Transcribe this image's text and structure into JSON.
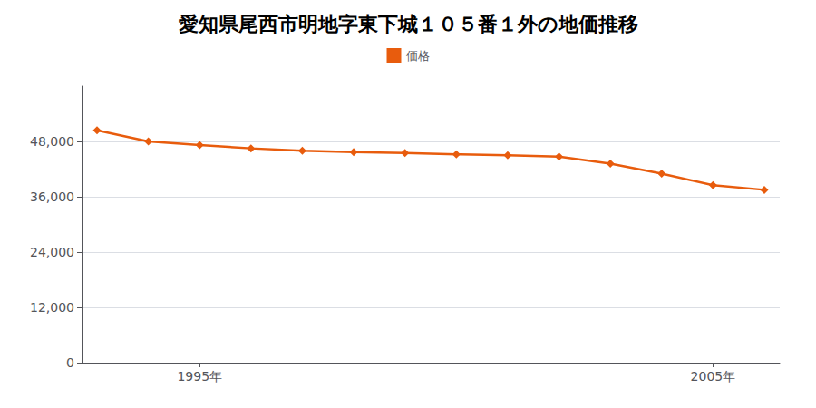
{
  "chart_data": {
    "type": "line",
    "title": "愛知県尾西市明地字東下城１０５番１外の地価推移",
    "x": [
      1993,
      1994,
      1995,
      1996,
      1997,
      1998,
      1999,
      2000,
      2001,
      2002,
      2003,
      2004,
      2005,
      2006
    ],
    "series": [
      {
        "name": "価格",
        "color": "#e85c0d",
        "values": [
          50400,
          48000,
          47200,
          46500,
          46000,
          45700,
          45500,
          45200,
          45000,
          44700,
          43200,
          41000,
          38500,
          37500
        ]
      }
    ],
    "xlim": [
      1992.7,
      2006.3
    ],
    "xticks": [
      {
        "value": 1995,
        "label": "1995年"
      },
      {
        "value": 2005,
        "label": "2005年"
      }
    ],
    "ylim": [
      0,
      60000
    ],
    "yticks": [
      0,
      {
        "value": 12000,
        "label": "12,000"
      },
      {
        "value": 24000,
        "label": "24,000"
      },
      {
        "value": 36000,
        "label": "36,000"
      },
      {
        "value": 48000,
        "label": "48,000"
      }
    ],
    "grid": true,
    "legend": "top",
    "marker": "diamond"
  }
}
